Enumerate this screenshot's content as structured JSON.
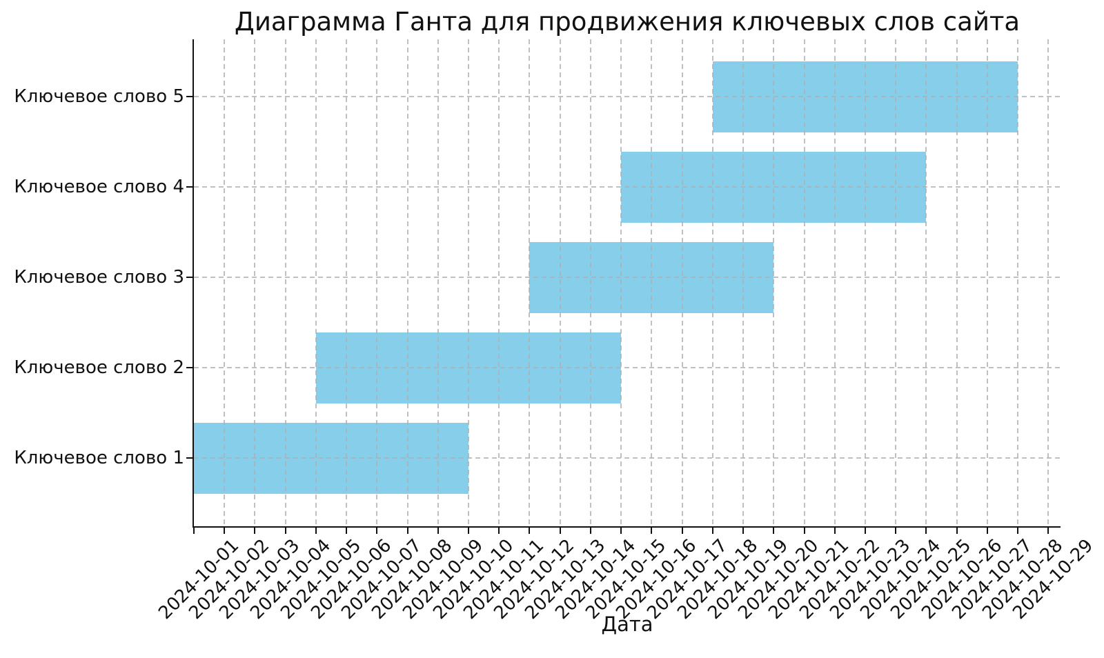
{
  "chart_data": {
    "type": "bar",
    "subtype": "gantt",
    "title": "Диаграмма Ганта для продвижения ключевых слов сайта",
    "xlabel": "Дата",
    "ylabel": "",
    "bar_color": "#87CEEB",
    "grid": true,
    "grid_style": "dashed",
    "axis_color": "#111111",
    "x_axis_span_days": 28.4,
    "categories": [
      "Ключевое слово 1",
      "Ключевое слово 2",
      "Ключевое слово 3",
      "Ключевое слово 4",
      "Ключевое слово 5"
    ],
    "tasks": [
      {
        "label": "Ключевое слово 1",
        "start": "2024-10-01",
        "end": "2024-10-10",
        "start_day": 0,
        "duration_days": 9
      },
      {
        "label": "Ключевое слово 2",
        "start": "2024-10-05",
        "end": "2024-10-15",
        "start_day": 4,
        "duration_days": 10
      },
      {
        "label": "Ключевое слово 3",
        "start": "2024-10-12",
        "end": "2024-10-20",
        "start_day": 11,
        "duration_days": 8
      },
      {
        "label": "Ключевое слово 4",
        "start": "2024-10-15",
        "end": "2024-10-25",
        "start_day": 14,
        "duration_days": 10
      },
      {
        "label": "Ключевое слово 5",
        "start": "2024-10-18",
        "end": "2024-10-28",
        "start_day": 17,
        "duration_days": 10
      }
    ],
    "x_ticks": [
      "2024-10-01",
      "2024-10-02",
      "2024-10-03",
      "2024-10-04",
      "2024-10-05",
      "2024-10-06",
      "2024-10-07",
      "2024-10-08",
      "2024-10-09",
      "2024-10-10",
      "2024-10-11",
      "2024-10-12",
      "2024-10-13",
      "2024-10-14",
      "2024-10-15",
      "2024-10-16",
      "2024-10-17",
      "2024-10-18",
      "2024-10-19",
      "2024-10-20",
      "2024-10-21",
      "2024-10-22",
      "2024-10-23",
      "2024-10-24",
      "2024-10-25",
      "2024-10-26",
      "2024-10-27",
      "2024-10-28",
      "2024-10-29"
    ],
    "row_order_top_to_bottom": [
      "Ключевое слово 5",
      "Ключевое слово 4",
      "Ключевое слово 3",
      "Ключевое слово 2",
      "Ключевое слово 1"
    ]
  }
}
